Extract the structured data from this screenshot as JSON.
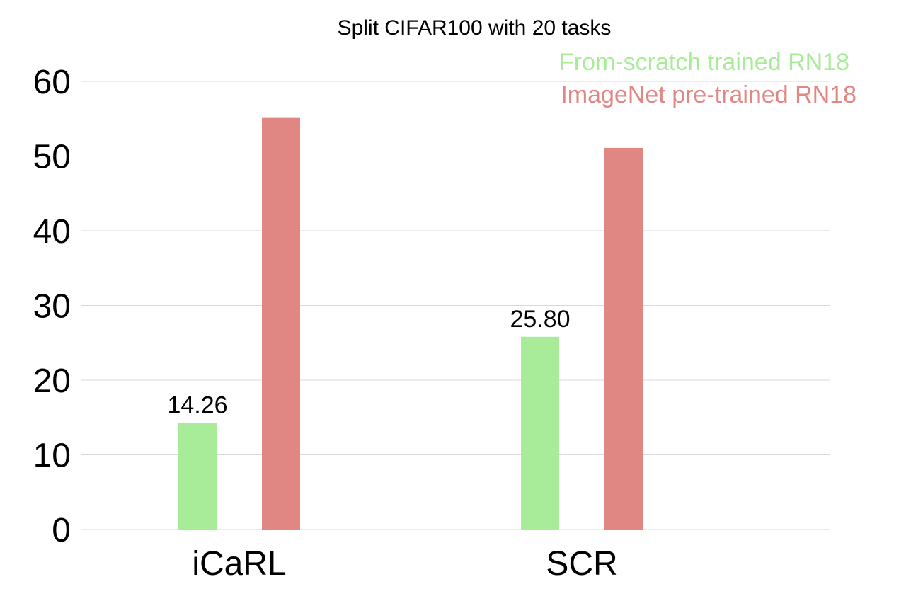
{
  "chart_data": {
    "type": "bar",
    "title": "Split CIFAR100 with 20 tasks",
    "xlabel": "",
    "ylabel": "",
    "categories": [
      "iCaRL",
      "SCR"
    ],
    "series": [
      {
        "name": "From-scratch trained RN18",
        "values": [
          14.26,
          25.8
        ],
        "labels": [
          "14.26",
          "25.80"
        ],
        "color": "#a8eb98"
      },
      {
        "name": "ImageNet pre-trained RN18",
        "values": [
          55.2,
          51.1
        ],
        "labels": [
          "",
          ""
        ],
        "color": "#e18783"
      }
    ],
    "ylim": [
      0,
      60
    ],
    "yticks": [
      0,
      10,
      20,
      30,
      40,
      50,
      60
    ],
    "grid": true,
    "legend_position": "top-right"
  }
}
